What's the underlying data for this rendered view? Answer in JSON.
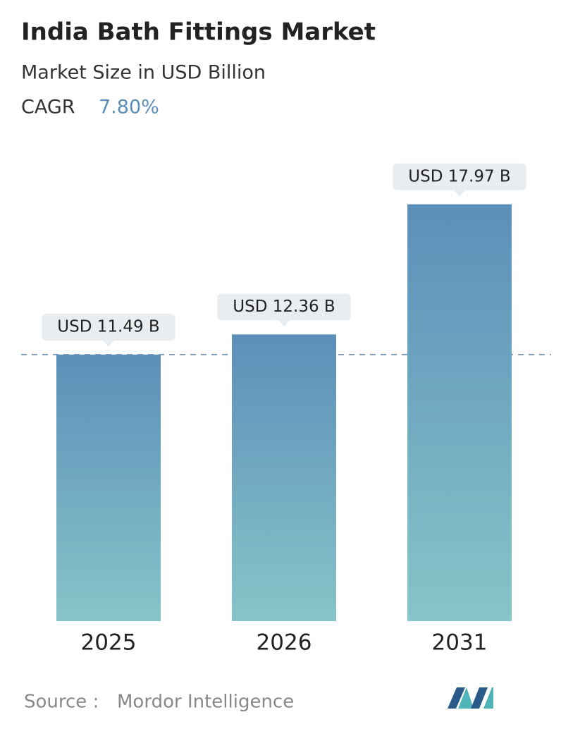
{
  "chart_data": {
    "type": "bar",
    "title": "India Bath Fittings Market",
    "subtitle": "Market Size in USD Billion",
    "cagr_label": "CAGR",
    "cagr_value": "7.80%",
    "categories": [
      "2025",
      "2026",
      "2031"
    ],
    "values": [
      11.49,
      12.36,
      17.97
    ],
    "value_labels": [
      "USD 11.49 B",
      "USD 12.36 B",
      "USD 17.97 B"
    ],
    "color_top": "#5c8fb9",
    "color_bottom": "#86c5c9",
    "source_label": "Source :",
    "source": "Mordor Intelligence"
  }
}
